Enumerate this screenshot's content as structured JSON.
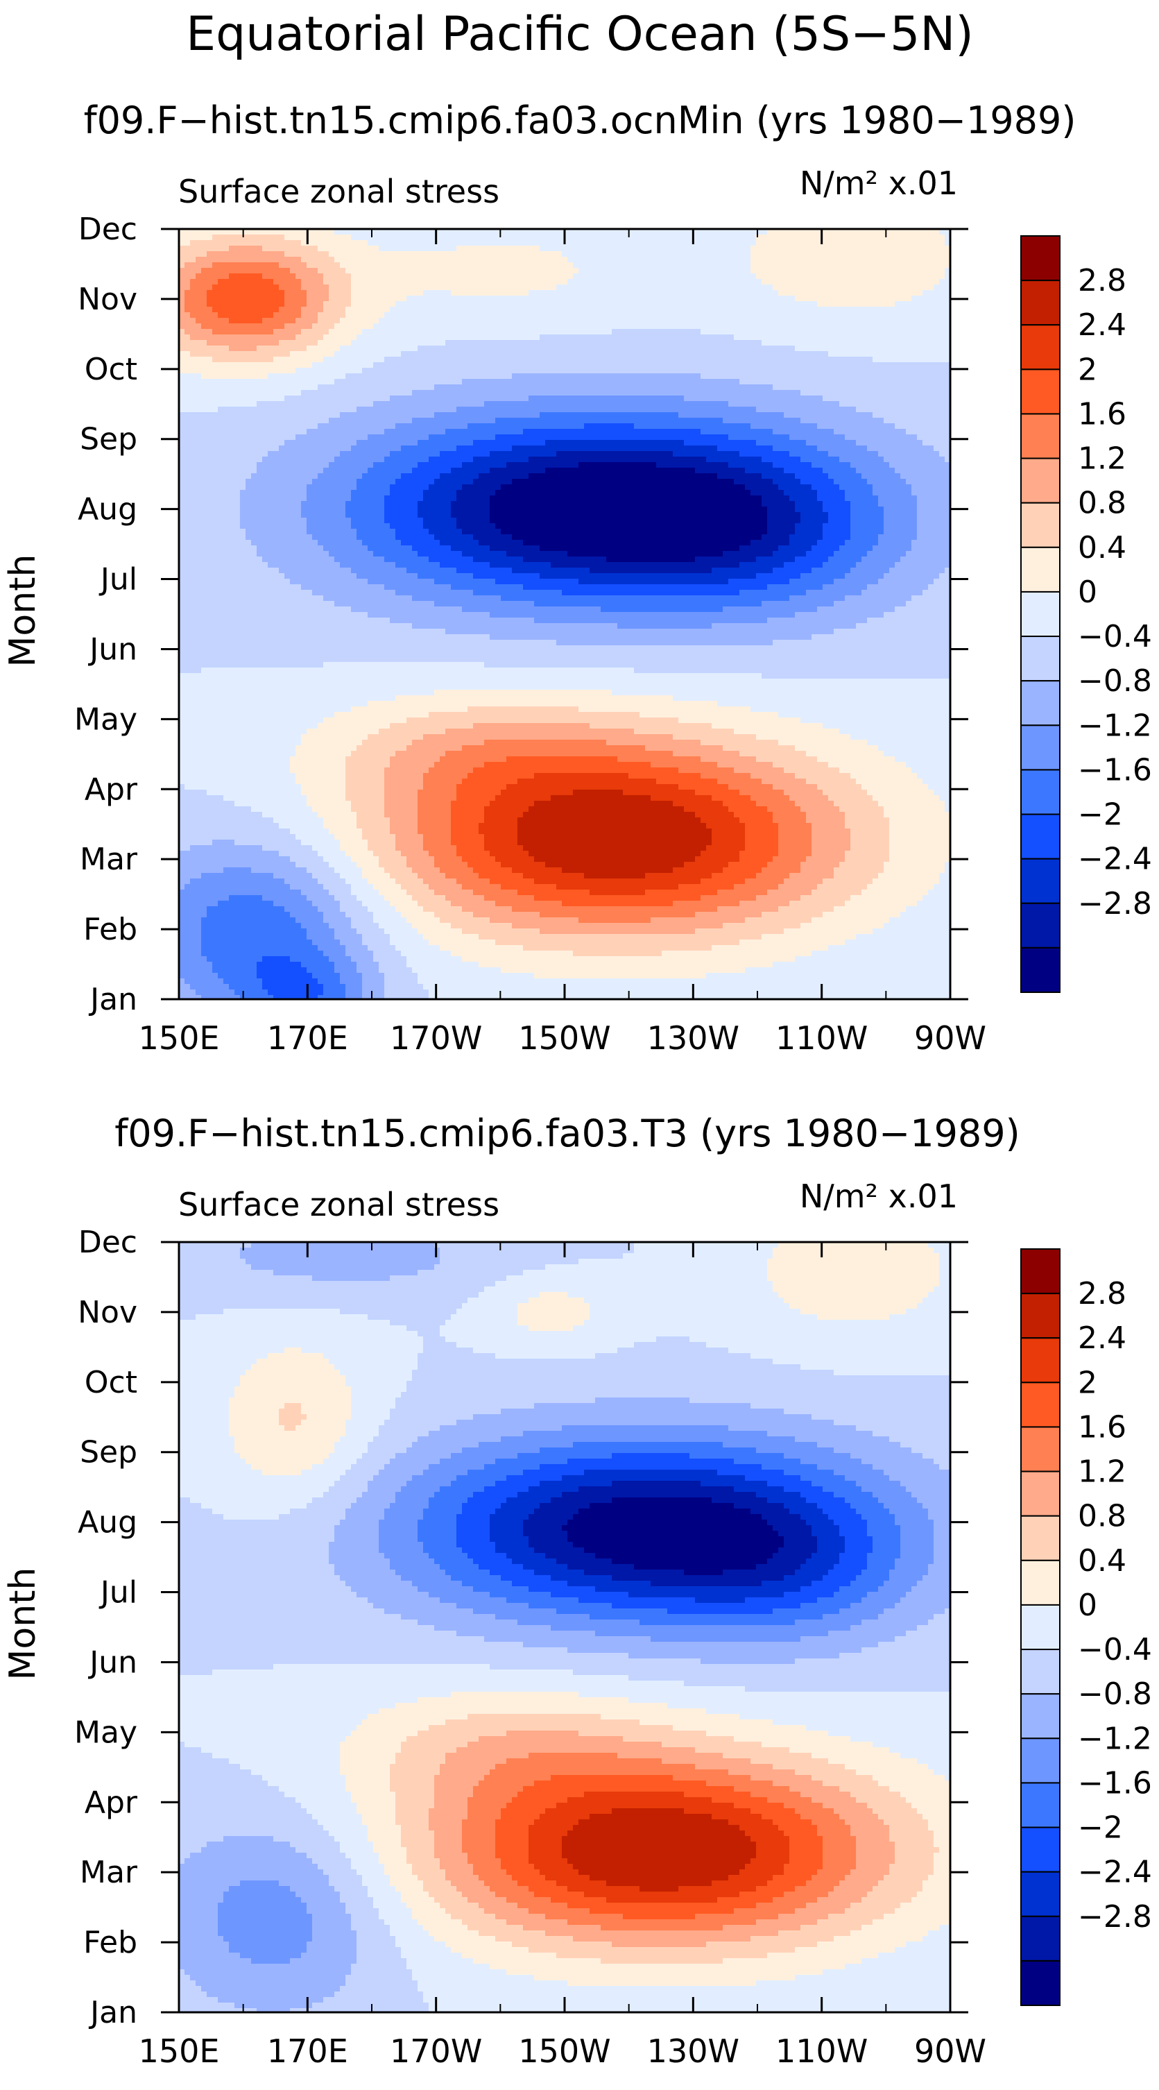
{
  "figure": {
    "title": "Equatorial Pacific Ocean (5S−5N)"
  },
  "colors": {
    "levels": [
      "#000082",
      "#0018a8",
      "#0032d2",
      "#1450ff",
      "#3c78ff",
      "#6e96ff",
      "#9ab4ff",
      "#c4d4ff",
      "#e2eeff",
      "#fff0de",
      "#ffd2b8",
      "#ffaa8a",
      "#ff8052",
      "#ff5a23",
      "#e83a0a",
      "#c22000",
      "#8c0000"
    ]
  },
  "chart_data": [
    {
      "type": "heatmap",
      "title": "f09.F−hist.tn15.cmip6.fa03.ocnMin (yrs 1980−1989)",
      "subtitle_left": "Surface zonal stress",
      "units_label": "N/m² x.01",
      "ylabel": "Month",
      "x_tick_labels": [
        "150E",
        "170E",
        "170W",
        "150W",
        "130W",
        "110W",
        "90W"
      ],
      "x_tick_lon": [
        150,
        170,
        190,
        210,
        230,
        250,
        270
      ],
      "xlim": [
        150,
        270
      ],
      "y_tick_labels": [
        "Jan",
        "Feb",
        "Mar",
        "Apr",
        "May",
        "Jun",
        "Jul",
        "Aug",
        "Sep",
        "Oct",
        "Nov",
        "Dec"
      ],
      "ylim": [
        1,
        12
      ],
      "colorbar_labels": [
        "2.8",
        "2.4",
        "2",
        "1.6",
        "1.2",
        "0.8",
        "0.4",
        "0",
        "−0.4",
        "−0.8",
        "−1.2",
        "−1.6",
        "−2",
        "−2.4",
        "−2.8"
      ],
      "levels": [
        -2.8,
        -2.4,
        -2.0,
        -1.6,
        -1.2,
        -0.8,
        -0.4,
        0,
        0.4,
        0.8,
        1.2,
        1.6,
        2.0,
        2.4,
        2.8
      ],
      "features": [
        {
          "lon": 215,
          "month": 8.0,
          "dlon": 38,
          "dmon": 1.35,
          "amp": -3.4
        },
        {
          "lon": 240,
          "month": 7.6,
          "dlon": 22,
          "dmon": 1.2,
          "amp": -0.8
        },
        {
          "lon": 218,
          "month": 3.3,
          "dlon": 36,
          "dmon": 1.4,
          "amp": 3.3
        },
        {
          "lon": 195,
          "month": 4.6,
          "dlon": 25,
          "dmon": 0.8,
          "amp": 0.7
        },
        {
          "lon": 160,
          "month": 11.0,
          "dlon": 15,
          "dmon": 0.9,
          "amp": 2.3
        },
        {
          "lon": 162,
          "month": 2.0,
          "dlon": 18,
          "dmon": 1.3,
          "amp": -1.6
        },
        {
          "lon": 170,
          "month": 1.0,
          "dlon": 10,
          "dmon": 0.6,
          "amp": -1.0
        },
        {
          "lon": 255,
          "month": 11.6,
          "dlon": 20,
          "dmon": 1.0,
          "amp": 0.7
        },
        {
          "lon": 200,
          "month": 11.4,
          "dlon": 25,
          "dmon": 0.8,
          "amp": 0.5
        }
      ]
    },
    {
      "type": "heatmap",
      "title": "f09.F−hist.tn15.cmip6.fa03.T3 (yrs 1980−1989)",
      "subtitle_left": "Surface zonal stress",
      "units_label": "N/m² x.01",
      "ylabel": "Month",
      "x_tick_labels": [
        "150E",
        "170E",
        "170W",
        "150W",
        "130W",
        "110W",
        "90W"
      ],
      "x_tick_lon": [
        150,
        170,
        190,
        210,
        230,
        250,
        270
      ],
      "xlim": [
        150,
        270
      ],
      "y_tick_labels": [
        "Jan",
        "Feb",
        "Mar",
        "Apr",
        "May",
        "Jun",
        "Jul",
        "Aug",
        "Sep",
        "Oct",
        "Nov",
        "Dec"
      ],
      "ylim": [
        1,
        12
      ],
      "colorbar_labels": [
        "2.8",
        "2.4",
        "2",
        "1.6",
        "1.2",
        "0.8",
        "0.4",
        "0",
        "−0.4",
        "−0.8",
        "−1.2",
        "−1.6",
        "−2",
        "−2.4",
        "−2.8"
      ],
      "levels": [
        -2.8,
        -2.4,
        -2.0,
        -1.6,
        -1.2,
        -0.8,
        -0.4,
        0,
        0.4,
        0.8,
        1.2,
        1.6,
        2.0,
        2.4,
        2.8
      ],
      "features": [
        {
          "lon": 222,
          "month": 7.9,
          "dlon": 36,
          "dmon": 1.3,
          "amp": -3.1
        },
        {
          "lon": 245,
          "month": 7.3,
          "dlon": 20,
          "dmon": 1.1,
          "amp": -0.8
        },
        {
          "lon": 225,
          "month": 3.3,
          "dlon": 36,
          "dmon": 1.35,
          "amp": 3.3
        },
        {
          "lon": 200,
          "month": 4.8,
          "dlon": 25,
          "dmon": 0.9,
          "amp": 0.8
        },
        {
          "lon": 165,
          "month": 2.4,
          "dlon": 18,
          "dmon": 1.4,
          "amp": -1.1
        },
        {
          "lon": 168,
          "month": 9.4,
          "dlon": 12,
          "dmon": 1.2,
          "amp": 0.9
        },
        {
          "lon": 175,
          "month": 11.8,
          "dlon": 25,
          "dmon": 0.6,
          "amp": -0.6
        },
        {
          "lon": 255,
          "month": 11.6,
          "dlon": 18,
          "dmon": 1.0,
          "amp": 0.7
        },
        {
          "lon": 208,
          "month": 11.0,
          "dlon": 10,
          "dmon": 0.5,
          "amp": 0.6
        }
      ]
    }
  ]
}
